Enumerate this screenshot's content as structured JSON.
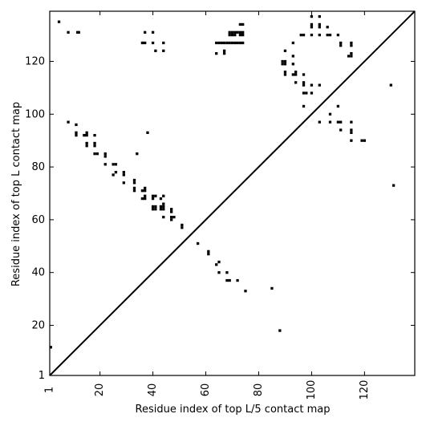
{
  "chart_data": {
    "type": "scatter",
    "xlabel": "Residue index of top L/5 contact map",
    "ylabel": "Residue index of top L contact map",
    "xlim": [
      1,
      139
    ],
    "ylim": [
      1,
      139
    ],
    "x_ticks": [
      1,
      20,
      40,
      60,
      80,
      100,
      120
    ],
    "y_ticks": [
      1,
      20,
      40,
      60,
      80,
      100,
      120
    ],
    "x_tick_labels": [
      "1",
      "20",
      "40",
      "60",
      "80",
      "100",
      "120"
    ],
    "y_tick_labels": [
      "1",
      "20",
      "40",
      "60",
      "80",
      "100",
      "120"
    ],
    "diagonal": true,
    "marker_color": "#000000",
    "upper_triangle": [
      [
        1.4,
        11.7
      ],
      [
        88,
        18
      ],
      [
        85,
        34
      ],
      [
        75,
        33
      ],
      [
        72,
        37
      ],
      [
        68,
        37
      ],
      [
        69,
        37
      ],
      [
        68,
        40
      ],
      [
        65,
        40
      ],
      [
        64,
        43
      ],
      [
        65,
        44
      ],
      [
        61,
        47
      ],
      [
        61,
        48
      ],
      [
        57,
        51
      ],
      [
        51,
        57
      ],
      [
        51,
        58
      ],
      [
        47,
        60
      ],
      [
        48,
        61
      ],
      [
        47,
        61
      ],
      [
        47,
        63
      ],
      [
        47,
        64
      ],
      [
        44,
        61
      ],
      [
        43,
        64
      ],
      [
        44,
        64
      ],
      [
        44,
        65
      ],
      [
        43,
        65
      ],
      [
        44,
        66
      ],
      [
        41,
        64
      ],
      [
        40,
        64
      ],
      [
        41,
        65
      ],
      [
        40,
        65
      ],
      [
        40,
        68
      ],
      [
        41,
        69
      ],
      [
        40,
        69
      ],
      [
        43,
        68
      ],
      [
        44,
        69
      ],
      [
        36,
        68
      ],
      [
        37,
        68
      ],
      [
        37,
        69
      ],
      [
        36,
        71
      ],
      [
        37,
        71
      ],
      [
        37,
        72
      ],
      [
        33,
        71
      ],
      [
        33,
        72
      ],
      [
        33,
        74
      ],
      [
        33,
        75
      ],
      [
        29,
        74
      ],
      [
        29,
        77
      ],
      [
        29,
        78
      ],
      [
        25,
        77
      ],
      [
        26,
        78
      ],
      [
        25,
        81
      ],
      [
        26,
        81
      ],
      [
        22,
        81
      ],
      [
        22,
        84
      ],
      [
        22,
        85
      ],
      [
        18,
        85
      ],
      [
        19,
        85
      ],
      [
        18,
        88
      ],
      [
        18,
        89
      ],
      [
        15,
        88
      ],
      [
        15,
        89
      ],
      [
        14,
        92
      ],
      [
        15,
        92
      ],
      [
        15,
        93
      ],
      [
        11,
        92
      ],
      [
        11,
        93
      ],
      [
        11,
        96
      ],
      [
        8,
        97
      ],
      [
        18,
        92
      ],
      [
        34,
        85
      ],
      [
        38,
        93
      ],
      [
        4.5,
        135
      ],
      [
        8,
        131
      ],
      [
        11.5,
        131
      ],
      [
        12,
        131
      ],
      [
        36,
        127
      ],
      [
        37,
        127
      ],
      [
        37,
        131
      ],
      [
        40,
        131
      ],
      [
        40,
        127
      ],
      [
        41,
        124
      ],
      [
        44,
        124
      ],
      [
        44,
        127
      ],
      [
        64,
        123
      ],
      [
        64,
        127
      ],
      [
        65,
        127
      ],
      [
        66,
        127
      ],
      [
        67,
        127
      ],
      [
        68,
        127
      ],
      [
        69,
        127
      ],
      [
        70,
        127
      ],
      [
        71,
        127
      ],
      [
        72,
        127
      ],
      [
        73,
        127
      ],
      [
        74,
        127
      ],
      [
        67,
        123
      ],
      [
        67,
        124
      ],
      [
        69,
        130
      ],
      [
        69,
        131
      ],
      [
        70,
        131
      ],
      [
        71,
        131
      ],
      [
        71,
        130
      ],
      [
        72,
        131
      ],
      [
        73,
        130
      ],
      [
        73,
        131
      ],
      [
        74,
        130
      ],
      [
        74,
        131
      ],
      [
        73,
        134
      ],
      [
        74,
        134
      ],
      [
        70,
        130
      ],
      [
        89,
        119
      ],
      [
        89,
        120
      ],
      [
        90,
        120
      ],
      [
        90,
        119
      ],
      [
        90,
        116
      ],
      [
        90,
        115
      ],
      [
        90,
        124
      ],
      [
        93,
        115
      ],
      [
        93,
        119
      ],
      [
        93,
        122
      ],
      [
        93,
        127
      ],
      [
        94,
        115
      ],
      [
        94,
        116
      ],
      [
        94,
        112
      ],
      [
        96,
        130
      ],
      [
        97,
        130
      ],
      [
        97,
        115
      ],
      [
        97,
        112
      ],
      [
        97,
        111
      ],
      [
        97,
        108
      ],
      [
        98,
        108
      ],
      [
        97,
        103
      ],
      [
        100,
        108
      ],
      [
        100,
        111
      ],
      [
        100,
        130
      ],
      [
        100,
        133
      ],
      [
        100,
        134
      ],
      [
        100,
        137
      ],
      [
        103,
        134
      ],
      [
        103,
        133
      ],
      [
        103,
        137
      ],
      [
        103,
        130
      ],
      [
        103,
        111
      ],
      [
        103,
        97
      ],
      [
        106,
        133
      ],
      [
        106,
        130
      ],
      [
        107,
        130
      ],
      [
        107,
        100
      ],
      [
        107,
        97
      ],
      [
        110,
        97
      ],
      [
        110,
        103
      ],
      [
        111,
        97
      ],
      [
        111,
        94
      ],
      [
        111,
        126
      ],
      [
        111,
        127
      ],
      [
        110,
        130
      ],
      [
        114,
        122
      ],
      [
        115,
        122
      ],
      [
        115,
        123
      ],
      [
        115,
        126
      ],
      [
        115,
        127
      ],
      [
        115,
        97
      ],
      [
        115,
        94
      ],
      [
        115,
        93
      ],
      [
        115,
        90
      ],
      [
        119,
        90
      ],
      [
        120,
        90
      ],
      [
        130,
        111
      ],
      [
        131,
        73
      ]
    ]
  }
}
